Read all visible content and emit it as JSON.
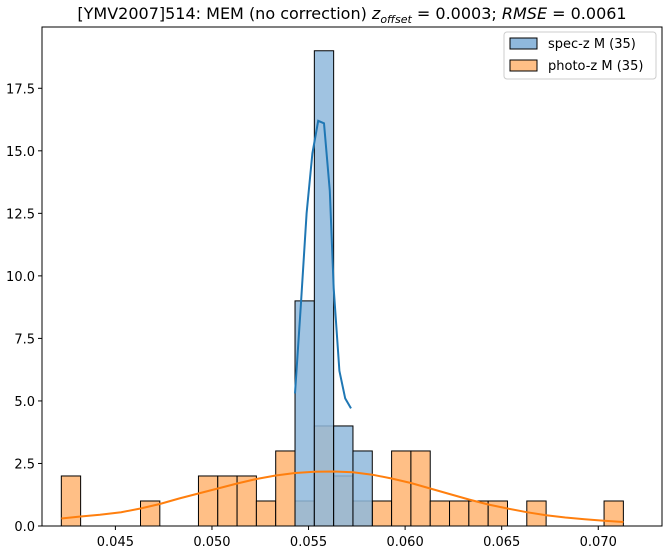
{
  "chart_data": {
    "type": "histogram",
    "title": "[YMV2007]514: MEM (no correction) z_offset = 0.0003; RMSE = 0.0061",
    "title_parts": {
      "prefix": "[YMV2007]514: MEM (no correction) ",
      "z": "z",
      "offset_sub": "offset",
      "eq1": " = 0.0003; ",
      "rmse": "RMSE",
      "eq2": " = 0.0061"
    },
    "xlabel": "",
    "ylabel": "",
    "xlim": [
      0.0412,
      0.0733
    ],
    "ylim": [
      0,
      19.95
    ],
    "xticks": [
      0.045,
      0.05,
      0.055,
      0.06,
      0.065,
      0.07
    ],
    "xtick_labels": [
      "0.045",
      "0.050",
      "0.055",
      "0.060",
      "0.065",
      "0.070"
    ],
    "yticks": [
      0,
      2.5,
      5,
      7.5,
      10,
      12.5,
      15,
      17.5
    ],
    "ytick_labels": [
      "0.0",
      "2.5",
      "5.0",
      "7.5",
      "10.0",
      "12.5",
      "15.0",
      "17.5"
    ],
    "grid": false,
    "legend_position": "top-right",
    "bin_width": 0.001,
    "series": [
      {
        "name": "spec-z M (35)",
        "color": "#1f77b4",
        "fill": "#8fb8dc",
        "bins": [
          {
            "start": 0.0543,
            "count": 9
          },
          {
            "start": 0.0553,
            "count": 19
          },
          {
            "start": 0.0563,
            "count": 4
          },
          {
            "start": 0.0573,
            "count": 3
          }
        ],
        "kde": {
          "x": [
            0.0543,
            0.0546,
            0.0549,
            0.0552,
            0.0555,
            0.0558,
            0.0561,
            0.0563,
            0.0566,
            0.0569,
            0.0572
          ],
          "y": [
            5.3,
            8.8,
            12.5,
            14.9,
            16.2,
            16.1,
            13.4,
            9.5,
            6.2,
            5.1,
            4.7
          ]
        }
      },
      {
        "name": "photo-z M (35)",
        "color": "#ff7f0e",
        "fill": "#ffbf86",
        "bins": [
          {
            "start": 0.0422,
            "count": 2
          },
          {
            "start": 0.0432,
            "count": 0
          },
          {
            "start": 0.0442,
            "count": 0
          },
          {
            "start": 0.0453,
            "count": 0
          },
          {
            "start": 0.0463,
            "count": 1
          },
          {
            "start": 0.0473,
            "count": 0
          },
          {
            "start": 0.0483,
            "count": 0
          },
          {
            "start": 0.0493,
            "count": 2
          },
          {
            "start": 0.0503,
            "count": 2
          },
          {
            "start": 0.0513,
            "count": 2
          },
          {
            "start": 0.0523,
            "count": 1
          },
          {
            "start": 0.0533,
            "count": 3
          },
          {
            "start": 0.0543,
            "count": 1
          },
          {
            "start": 0.0553,
            "count": 4
          },
          {
            "start": 0.0563,
            "count": 2
          },
          {
            "start": 0.0573,
            "count": 1
          },
          {
            "start": 0.0583,
            "count": 1
          },
          {
            "start": 0.0593,
            "count": 3
          },
          {
            "start": 0.0603,
            "count": 3
          },
          {
            "start": 0.0613,
            "count": 1
          },
          {
            "start": 0.0623,
            "count": 1
          },
          {
            "start": 0.0633,
            "count": 1
          },
          {
            "start": 0.0643,
            "count": 1
          },
          {
            "start": 0.0653,
            "count": 0
          },
          {
            "start": 0.0663,
            "count": 1
          },
          {
            "start": 0.0673,
            "count": 0
          },
          {
            "start": 0.0683,
            "count": 0
          },
          {
            "start": 0.0693,
            "count": 0
          },
          {
            "start": 0.0703,
            "count": 1
          }
        ],
        "kde": {
          "x": [
            0.0422,
            0.0432,
            0.0442,
            0.0453,
            0.0463,
            0.0473,
            0.0483,
            0.0493,
            0.0503,
            0.0513,
            0.0523,
            0.0533,
            0.0543,
            0.0553,
            0.0563,
            0.0573,
            0.0583,
            0.0593,
            0.0603,
            0.0613,
            0.0623,
            0.0633,
            0.0643,
            0.0653,
            0.0663,
            0.0673,
            0.0683,
            0.0693,
            0.0703,
            0.0713
          ],
          "y": [
            0.3,
            0.38,
            0.45,
            0.55,
            0.7,
            0.88,
            1.1,
            1.3,
            1.5,
            1.7,
            1.88,
            2.02,
            2.12,
            2.17,
            2.18,
            2.15,
            2.05,
            1.9,
            1.72,
            1.5,
            1.28,
            1.06,
            0.86,
            0.7,
            0.55,
            0.43,
            0.34,
            0.27,
            0.21,
            0.16
          ]
        }
      }
    ]
  }
}
